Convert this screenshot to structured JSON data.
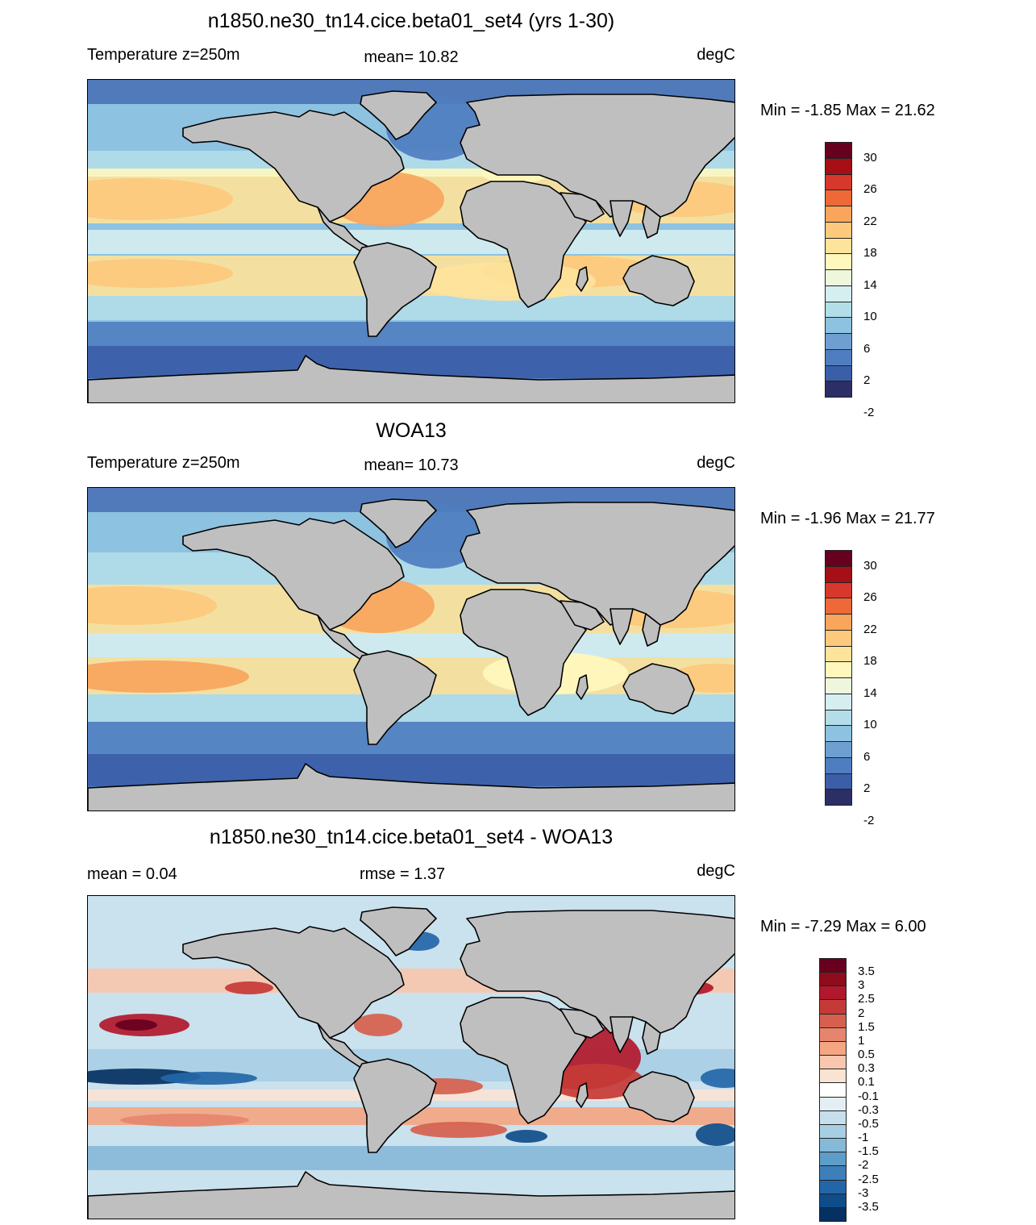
{
  "panels": [
    {
      "id": "model",
      "title": "n1850.ne30_tn14.cice.beta01_set4 (yrs 1-30)",
      "left_label": "Temperature z=250m",
      "center_label": "mean=  10.82",
      "units": "degC",
      "minmax": "Min =  -1.85 Max =  21.62",
      "palette": "temperature",
      "colorbar_labels": [
        "30",
        "26",
        "22",
        "18",
        "14",
        "10",
        "6",
        "2",
        "-2"
      ],
      "colorbar_colors": [
        "#67001f",
        "#a50f15",
        "#d6392c",
        "#ee6838",
        "#f9a55c",
        "#fdc97c",
        "#fee39a",
        "#fff7bc",
        "#eef7dc",
        "#d5eef0",
        "#b2dde9",
        "#8dc2e0",
        "#6f9fd0",
        "#4f7ec0",
        "#3b5ea8",
        "#2c2e66"
      ]
    },
    {
      "id": "obs",
      "title": "WOA13",
      "left_label": "Temperature z=250m",
      "center_label": "mean=  10.73",
      "units": "degC",
      "minmax": "Min =  -1.96 Max =  21.77",
      "palette": "temperature",
      "colorbar_labels": [
        "30",
        "26",
        "22",
        "18",
        "14",
        "10",
        "6",
        "2",
        "-2"
      ],
      "colorbar_colors": [
        "#67001f",
        "#a50f15",
        "#d6392c",
        "#ee6838",
        "#f9a55c",
        "#fdc97c",
        "#fee39a",
        "#fff7bc",
        "#eef7dc",
        "#d5eef0",
        "#b2dde9",
        "#8dc2e0",
        "#6f9fd0",
        "#4f7ec0",
        "#3b5ea8",
        "#2c2e66"
      ]
    },
    {
      "id": "diff",
      "title": "n1850.ne30_tn14.cice.beta01_set4 - WOA13",
      "left_label": "mean =   0.04",
      "center_label": "rmse =   1.37",
      "units": "degC",
      "minmax": "Min =  -7.29 Max =   6.00",
      "palette": "difference",
      "colorbar_labels": [
        "3.5",
        "3",
        "2.5",
        "2",
        "1.5",
        "1",
        "0.5",
        "0.3",
        "0.1",
        "-0.1",
        "-0.3",
        "-0.5",
        "-1",
        "-1.5",
        "-2",
        "-2.5",
        "-3",
        "-3.5"
      ],
      "colorbar_colors": [
        "#67001f",
        "#8e0c1c",
        "#b2182b",
        "#c53a36",
        "#d6604d",
        "#e6856d",
        "#f4a582",
        "#f8c7ad",
        "#fbe3d4",
        "#ffffff",
        "#e4eef5",
        "#c7dfec",
        "#a8cee3",
        "#86b8d7",
        "#5d9dc9",
        "#3d7fb8",
        "#2366a8",
        "#0f4d8a",
        "#053061"
      ]
    }
  ]
}
